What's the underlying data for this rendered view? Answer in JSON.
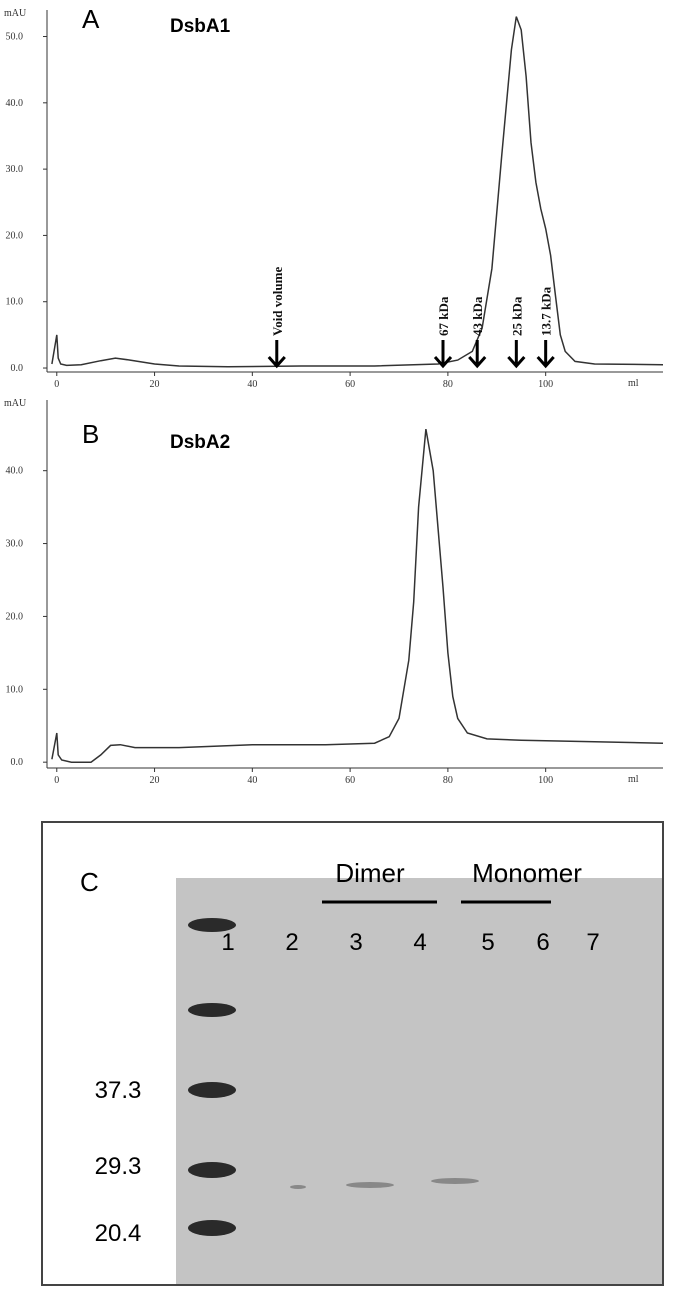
{
  "chart_data": [
    {
      "type": "line",
      "panel": "A",
      "title": "DsbA1",
      "y_label": "mAU",
      "x_label": "ml",
      "color": "#333333",
      "x": [
        -1,
        0,
        0.3,
        0.8,
        2,
        5,
        9,
        12,
        15,
        20,
        25,
        35,
        50,
        65,
        78,
        82,
        85,
        87,
        89,
        91,
        93,
        94,
        95,
        96,
        97,
        98,
        99,
        100,
        101,
        102,
        103,
        104,
        106,
        110,
        124
      ],
      "values": [
        0.6,
        5,
        1.5,
        0.6,
        0.4,
        0.5,
        1.1,
        1.5,
        1.2,
        0.6,
        0.3,
        0.2,
        0.3,
        0.3,
        0.6,
        1.2,
        2.5,
        6,
        15,
        32,
        48,
        53,
        51,
        44,
        34,
        28,
        24,
        21,
        17,
        11,
        5,
        2.5,
        1,
        0.6,
        0.5
      ],
      "xlim": [
        -2,
        124
      ],
      "xticks": [
        0,
        20,
        40,
        60,
        80,
        100
      ],
      "ylim": [
        -0.6,
        54
      ],
      "yticks": [
        {
          "value": 0,
          "label": "0.0"
        },
        {
          "value": 10,
          "label": "10.0"
        },
        {
          "value": 20,
          "label": "20.0"
        },
        {
          "value": 30,
          "label": "30.0"
        },
        {
          "value": 40,
          "label": "40.0"
        },
        {
          "value": 50,
          "label": "50.0"
        }
      ],
      "annotations": [
        {
          "text": "Void volume",
          "x": 45
        },
        {
          "text": "67 kDa",
          "x": 79
        },
        {
          "text": "43 kDa",
          "x": 86
        },
        {
          "text": "25 kDa",
          "x": 94
        },
        {
          "text": "13.7 kDa",
          "x": 100
        }
      ]
    },
    {
      "type": "line",
      "panel": "B",
      "title": "DsbA2",
      "y_label": "mAU",
      "x_label": "ml",
      "color": "#333333",
      "x": [
        -1,
        0,
        0.3,
        1,
        3,
        7,
        9,
        11,
        13,
        16,
        25,
        40,
        55,
        65,
        68,
        70,
        72,
        73,
        74,
        75.5,
        77,
        78,
        79,
        80,
        81,
        82,
        84,
        88,
        95,
        110,
        124
      ],
      "values": [
        0.4,
        4,
        1,
        0.3,
        0,
        0,
        1,
        2.3,
        2.4,
        2,
        2,
        2.4,
        2.4,
        2.6,
        3.5,
        6,
        14,
        22,
        35,
        45.7,
        40,
        32,
        24,
        15,
        9,
        6,
        4,
        3.2,
        3,
        2.8,
        2.6
      ],
      "xlim": [
        -2,
        124
      ],
      "xticks": [
        0,
        20,
        40,
        60,
        80,
        100
      ],
      "ylim": [
        -0.8,
        49.7
      ],
      "yticks": [
        {
          "value": 0,
          "label": "0.0"
        },
        {
          "value": 10,
          "label": "10.0"
        },
        {
          "value": 20,
          "label": "20.0"
        },
        {
          "value": 30,
          "label": "30.0"
        },
        {
          "value": 40,
          "label": "40.0"
        }
      ]
    }
  ],
  "gel": {
    "panel": "C",
    "groups": [
      "Dimer",
      "Monomer"
    ],
    "lanes": [
      "1",
      "2",
      "3",
      "4",
      "5",
      "6",
      "7"
    ],
    "markers": [
      "37.3",
      "29.3",
      "20.4"
    ]
  }
}
